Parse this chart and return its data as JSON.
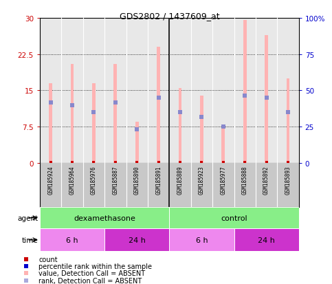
{
  "title": "GDS2802 / 1437609_at",
  "samples": [
    "GSM185924",
    "GSM185964",
    "GSM185976",
    "GSM185887",
    "GSM185890",
    "GSM185891",
    "GSM185889",
    "GSM185923",
    "GSM185977",
    "GSM185888",
    "GSM185892",
    "GSM185893"
  ],
  "bar_heights": [
    16.5,
    20.5,
    16.5,
    20.5,
    8.5,
    24.0,
    15.5,
    14.0,
    7.5,
    29.5,
    26.5,
    17.5
  ],
  "rank_values": [
    12.5,
    12.0,
    10.5,
    12.5,
    7.0,
    13.5,
    10.5,
    9.5,
    7.5,
    14.0,
    13.5,
    10.5
  ],
  "bar_color": "#FFB3B3",
  "dot_color_count": "#CC0000",
  "dot_color_rank": "#8888CC",
  "ylim_left": [
    0,
    30
  ],
  "ylim_right": [
    0,
    100
  ],
  "yticks_left": [
    0,
    7.5,
    15,
    22.5,
    30
  ],
  "ytick_labels_left": [
    "0",
    "7.5",
    "15",
    "22.5",
    "30"
  ],
  "yticks_right": [
    0,
    25,
    50,
    75,
    100
  ],
  "ytick_labels_right": [
    "0",
    "25",
    "50",
    "75",
    "100%"
  ],
  "agent_groups": [
    {
      "label": "dexamethasone",
      "start": 0,
      "end": 6,
      "color": "#88EE88"
    },
    {
      "label": "control",
      "start": 6,
      "end": 12,
      "color": "#88EE88"
    }
  ],
  "time_groups": [
    {
      "label": "6 h",
      "start": 0,
      "end": 3,
      "color": "#EE88EE"
    },
    {
      "label": "24 h",
      "start": 3,
      "end": 6,
      "color": "#CC33CC"
    },
    {
      "label": "6 h",
      "start": 6,
      "end": 9,
      "color": "#EE88EE"
    },
    {
      "label": "24 h",
      "start": 9,
      "end": 12,
      "color": "#CC33CC"
    }
  ],
  "legend_colors": [
    "#CC0000",
    "#0000CC",
    "#FFB3B3",
    "#AAAADD"
  ],
  "legend_labels": [
    "count",
    "percentile rank within the sample",
    "value, Detection Call = ABSENT",
    "rank, Detection Call = ABSENT"
  ],
  "bg_color": "#FFFFFF",
  "plot_bg_color": "#E8E8E8",
  "label_bg_color": "#C8C8C8",
  "bar_width": 0.15,
  "group_sep": 5.5
}
